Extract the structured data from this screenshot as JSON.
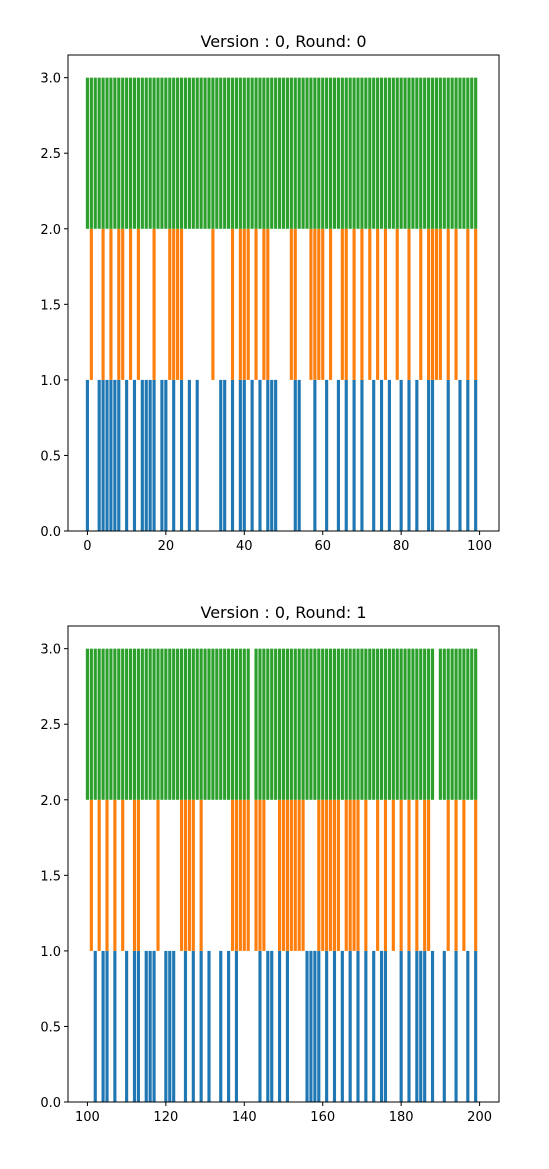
{
  "chart_data": [
    {
      "type": "bar",
      "title": "Version : 0, Round: 0",
      "xlabel": "",
      "ylabel": "",
      "xlim": [
        -4.95,
        104.95
      ],
      "ylim": [
        0,
        3.15
      ],
      "x_ticks": [
        0,
        20,
        40,
        60,
        80,
        100
      ],
      "y_ticks": [
        0.0,
        0.5,
        1.0,
        1.5,
        2.0,
        2.5,
        3.0
      ],
      "x_tick_labels": [
        "0",
        "20",
        "40",
        "60",
        "80",
        "100"
      ],
      "y_tick_labels": [
        "0.0",
        "0.5",
        "1.0",
        "1.5",
        "2.0",
        "2.5",
        "3.0"
      ],
      "series": [
        {
          "color": "#1f77b4",
          "bottom": 0,
          "height": 1,
          "x": [
            0,
            3,
            4,
            5,
            6,
            7,
            8,
            10,
            12,
            14,
            15,
            16,
            17,
            19,
            20,
            22,
            24,
            26,
            28,
            34,
            35,
            37,
            39,
            40,
            42,
            44,
            46,
            47,
            48,
            53,
            54,
            58,
            61,
            64,
            66,
            68,
            70,
            73,
            75,
            77,
            80,
            82,
            84,
            87,
            88,
            92,
            95,
            97,
            99
          ]
        },
        {
          "color": "#ff7f0e",
          "bottom": 1,
          "height": 1,
          "x": [
            1,
            4,
            6,
            8,
            9,
            11,
            13,
            17,
            21,
            22,
            23,
            24,
            32,
            37,
            39,
            40,
            41,
            43,
            45,
            46,
            52,
            53,
            57,
            58,
            59,
            60,
            62,
            65,
            66,
            68,
            70,
            72,
            74,
            76,
            79,
            82,
            85,
            87,
            88,
            89,
            90,
            92,
            94,
            97,
            99
          ]
        },
        {
          "color": "#2ca02c",
          "bottom": 2,
          "height": 1,
          "x": [
            0,
            1,
            2,
            3,
            4,
            5,
            6,
            7,
            8,
            9,
            10,
            11,
            12,
            13,
            14,
            15,
            16,
            17,
            18,
            19,
            20,
            21,
            22,
            23,
            24,
            25,
            26,
            27,
            28,
            29,
            30,
            31,
            32,
            33,
            34,
            35,
            36,
            37,
            38,
            39,
            40,
            41,
            42,
            43,
            44,
            45,
            46,
            47,
            48,
            49,
            50,
            51,
            52,
            53,
            54,
            55,
            56,
            57,
            58,
            59,
            60,
            61,
            62,
            63,
            64,
            65,
            66,
            67,
            68,
            69,
            70,
            71,
            72,
            73,
            74,
            75,
            76,
            77,
            78,
            79,
            80,
            81,
            82,
            83,
            84,
            85,
            86,
            87,
            88,
            89,
            90,
            91,
            92,
            93,
            94,
            95,
            96,
            97,
            98,
            99
          ]
        }
      ]
    },
    {
      "type": "bar",
      "title": "Version : 0, Round: 1",
      "xlabel": "",
      "ylabel": "",
      "xlim": [
        95.05,
        204.95
      ],
      "ylim": [
        0,
        3.15
      ],
      "x_ticks": [
        100,
        120,
        140,
        160,
        180,
        200
      ],
      "y_ticks": [
        0.0,
        0.5,
        1.0,
        1.5,
        2.0,
        2.5,
        3.0
      ],
      "x_tick_labels": [
        "100",
        "120",
        "140",
        "160",
        "180",
        "200"
      ],
      "y_tick_labels": [
        "0.0",
        "0.5",
        "1.0",
        "1.5",
        "2.0",
        "2.5",
        "3.0"
      ],
      "series": [
        {
          "color": "#1f77b4",
          "bottom": 0,
          "height": 1,
          "x": [
            102,
            104,
            105,
            107,
            110,
            112,
            113,
            115,
            116,
            117,
            120,
            121,
            122,
            125,
            127,
            129,
            131,
            134,
            136,
            138,
            144,
            146,
            147,
            149,
            151,
            156,
            157,
            158,
            159,
            161,
            163,
            165,
            167,
            169,
            171,
            173,
            175,
            176,
            180,
            182,
            184,
            185,
            186,
            188,
            191,
            194,
            197,
            199
          ]
        },
        {
          "color": "#ff7f0e",
          "bottom": 1,
          "height": 1,
          "x": [
            101,
            103,
            105,
            107,
            109,
            112,
            113,
            118,
            124,
            125,
            126,
            127,
            129,
            137,
            138,
            139,
            140,
            141,
            143,
            144,
            145,
            149,
            150,
            151,
            152,
            153,
            154,
            155,
            159,
            160,
            161,
            162,
            163,
            164,
            166,
            167,
            168,
            169,
            171,
            174,
            176,
            178,
            180,
            182,
            184,
            186,
            187,
            192,
            194,
            196,
            199
          ]
        },
        {
          "color": "#2ca02c",
          "bottom": 2,
          "height": 1,
          "x": [
            100,
            101,
            102,
            103,
            104,
            105,
            106,
            107,
            108,
            109,
            110,
            111,
            112,
            113,
            114,
            115,
            116,
            117,
            118,
            119,
            120,
            121,
            122,
            123,
            124,
            125,
            126,
            127,
            128,
            129,
            130,
            131,
            132,
            133,
            134,
            135,
            136,
            137,
            138,
            139,
            140,
            141,
            143,
            144,
            145,
            146,
            147,
            148,
            149,
            150,
            151,
            152,
            153,
            154,
            155,
            156,
            157,
            158,
            159,
            160,
            161,
            162,
            163,
            164,
            165,
            166,
            167,
            168,
            169,
            170,
            171,
            172,
            173,
            174,
            175,
            176,
            177,
            178,
            179,
            180,
            181,
            182,
            183,
            184,
            185,
            186,
            187,
            188,
            190,
            191,
            192,
            193,
            194,
            195,
            196,
            197,
            198,
            199
          ]
        }
      ]
    }
  ]
}
